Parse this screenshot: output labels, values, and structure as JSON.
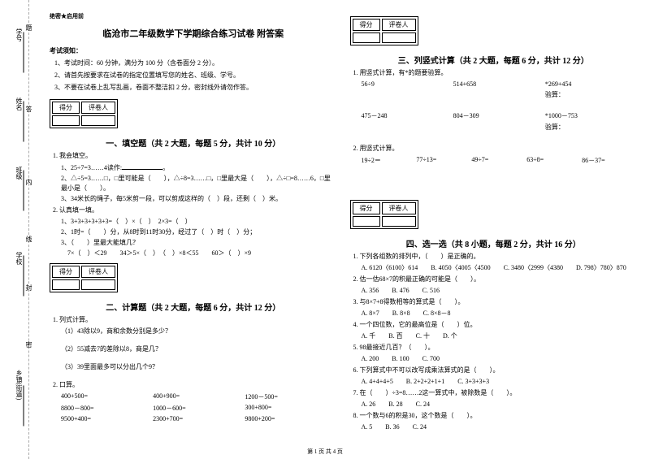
{
  "margin": {
    "labels": [
      "学号",
      "姓名",
      "班级",
      "学校",
      "乡镇(街道)"
    ],
    "dashed_chars": [
      "题",
      "答",
      "内",
      "线",
      "封",
      "密"
    ]
  },
  "header": {
    "secret": "绝密★启用前",
    "title": "临沧市二年级数学下学期综合练习试卷 附答案",
    "notice_title": "考试须知：",
    "notices": [
      "1、考试时间：60 分钟，满分为 100 分（含卷面分 2 分）。",
      "2、请首先按要求在试卷的指定位置填写您的姓名、班级、学号。",
      "3、不要在试卷上乱写乱画，卷面不整洁扣 2 分，密封线外请勿作答。"
    ]
  },
  "scorebox": {
    "c1": "得分",
    "c2": "评卷人"
  },
  "sections": {
    "s1": "一、填空题（共 2 大题，每题 5 分，共计 10 分）",
    "s2": "二、计算题（共 2 大题，每题 6 分，共计 12 分）",
    "s3": "三、列竖式计算（共 2 大题，每题 6 分，共计 12 分）",
    "s4": "四、选一选（共 8 小题，每题 2 分，共计 16 分）"
  },
  "q1": {
    "stem": "1. 我会填空。",
    "subs": [
      "1、25÷7=3……4读作:",
      "2、△÷5=3……□，□里可能是（　　），△÷8=3……□，□里最大是（　　），△÷□=8……6，□里最小是（　　）。",
      "3、34米长的绳子，每5米剪一段，可以剪成这样的（　）段，还剩（　）米。"
    ]
  },
  "q2": {
    "stem": "2. 认真填一填。",
    "subs": [
      "1、3+3+3+3+3+3=（　）×（　）　2×3=（　）",
      "2、1时=（　　）分，从8时到11时30分，经过了（　）时（　）分；",
      "3、（　　）里最大能填几？",
      "　7×（　）＜29　　34＞5×（　）　（　）×8＜55　　60＞（　）×9"
    ]
  },
  "q3": {
    "stem": "1. 列式计算。",
    "subs": [
      "（1）43除以9，商和余数分别是多少？",
      "（2）55减去7的差除以8，商是几？",
      "（3）39里面最多可以分出几个9？"
    ]
  },
  "q4": {
    "stem": "2. 口算。",
    "rows": [
      [
        "400+500=",
        "400+900=",
        "1200－500="
      ],
      [
        "8800－800=",
        "1000－600=",
        "300+800="
      ],
      [
        "9500+400=",
        "2300+700=",
        "9800+200="
      ]
    ]
  },
  "q5": {
    "stem": "1. 用竖式计算，有*的题要验算。",
    "rows": [
      [
        "56÷9",
        "514+658",
        "*269+454"
      ],
      [
        "",
        "",
        "验算："
      ],
      [
        "475－248",
        "804－309",
        "*1000－753"
      ],
      [
        "",
        "",
        "验算："
      ]
    ]
  },
  "q6": {
    "stem": "2. 用竖式计算。",
    "row": [
      "19÷2＝",
      "77÷13=",
      "49÷7=",
      "63÷8=",
      "86－37="
    ]
  },
  "q7": [
    {
      "stem": "1. 下列各组数的排列中，（　　）是正确的。",
      "opts": [
        "A. 6120〈6100〉614",
        "B. 4050〈4005〈4500",
        "C. 3480〈2999〈4380",
        "D. 798〉780〉870"
      ]
    },
    {
      "stem": "2. 估一估68×7的积最正确的可能是（　　）。",
      "opts": [
        "A. 356",
        "B. 476",
        "C. 516"
      ]
    },
    {
      "stem": "3. 与8×7+8得数相等的算式是（　　）。",
      "opts": [
        "A. 8×7",
        "B. 8×8",
        "C. 8×8－8"
      ]
    },
    {
      "stem": "4. 一个四位数，它的最高位是（　　）位。",
      "opts": [
        "A. 千",
        "B. 百",
        "C. 十",
        "D. 个"
      ]
    },
    {
      "stem": "5. 98最接近几百？（　　）。",
      "opts": [
        "A. 200",
        "B. 100",
        "C. 700"
      ]
    },
    {
      "stem": "6. 下列算式中不可以改写成乘法算式的是（　　）。",
      "opts": [
        "A. 4+4+4+5",
        "B. 2+2+2+1+1",
        "C. 3+3+3+3"
      ]
    },
    {
      "stem": "7. 在（　　）÷3=8……2这一算式中，被除数是（　　）。",
      "opts": [
        "A. 26",
        "B. 28",
        "C. 24"
      ]
    },
    {
      "stem": "8. 一个数与6的积是30，这个数是（　　）。",
      "opts": [
        "A. 5",
        "B. 36",
        "C. 24"
      ]
    }
  ],
  "footer": "第 1 页 共 4 页"
}
